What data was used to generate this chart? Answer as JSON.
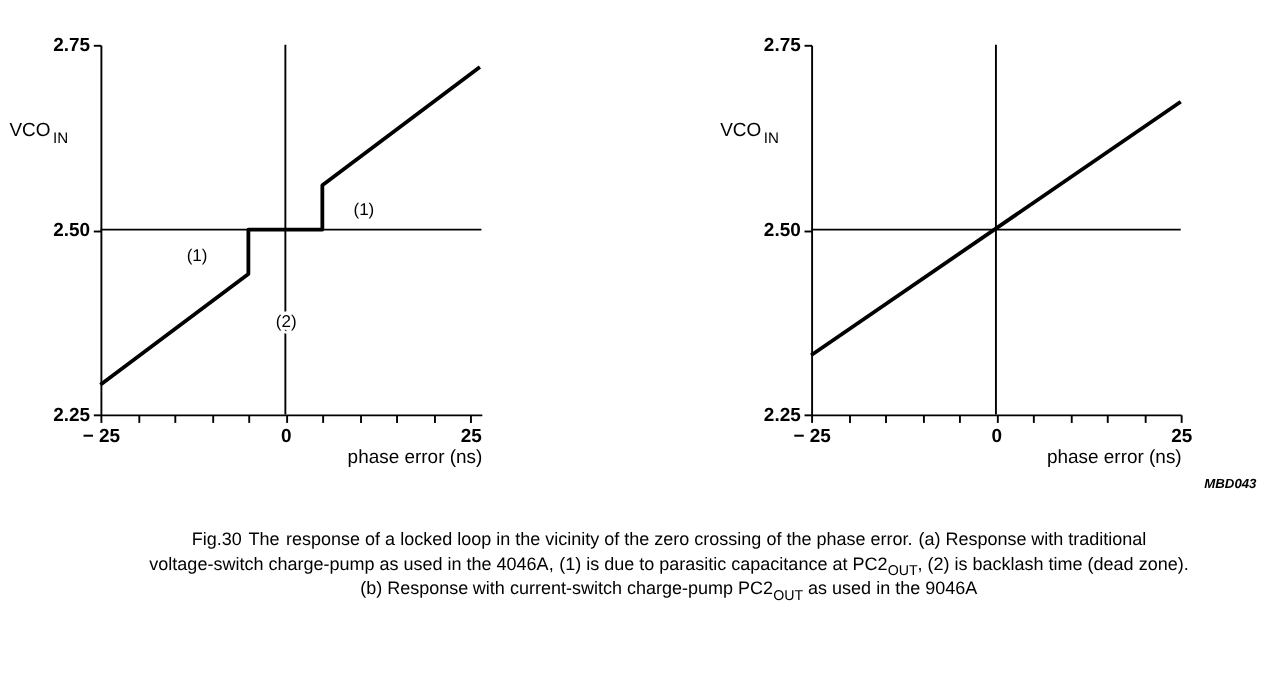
{
  "chart_data": [
    {
      "type": "line",
      "ylabel": "VCO$_{IN}$",
      "xlabel": "phase error (ns)",
      "x": [
        -25,
        -5,
        -5,
        5,
        5,
        26.3
      ],
      "series": [
        {
          "color": "#000000",
          "values": [
            2.29,
            2.44,
            2.5,
            2.5,
            2.56,
            2.72
          ]
        }
      ],
      "xlim": [
        -25,
        26.5
      ],
      "ylim": [
        2.25,
        2.75
      ],
      "xticks": [
        {
          "value": -25,
          "label": "− 25"
        },
        {
          "value": -20,
          "label": null
        },
        {
          "value": -15,
          "label": null
        },
        {
          "value": -10,
          "label": null
        },
        {
          "value": -5,
          "label": null
        },
        0,
        {
          "value": 5,
          "label": null
        },
        {
          "value": 10,
          "label": null
        },
        {
          "value": 15,
          "label": null
        },
        {
          "value": 20,
          "label": null
        },
        25
      ],
      "yticks": [
        {
          "value": 2.25,
          "label": "2.25"
        },
        {
          "value": 2.5,
          "label": "2.50"
        },
        {
          "value": 2.75,
          "label": "2.75"
        }
      ],
      "ref_lines": [
        {
          "axis": "y",
          "value": 2.5
        },
        {
          "axis": "x",
          "value": 0
        }
      ],
      "annotations": [
        "(1)",
        "(1)",
        "(2)",
        "Fig.30  The response of a locked loop in the vicinity of the zero crossing of the phase error. (a) Response with traditional voltage-switch charge-pump as used in the 4046A, (1) is due to parasitic capacitance at PC2$_{OUT}$, (2) is backlash time (dead zone). (b) Response with current-switch charge-pump PC2$_{OUT}$ as used in the 9046A",
        "MBD043"
      ],
      "grid": false
    },
    {
      "type": "line",
      "ylabel": "VCO$_{IN}$",
      "xlabel": "phase error (ns)",
      "x": [
        -25,
        25
      ],
      "series": [
        {
          "color": "#000000",
          "values": [
            2.33,
            2.673
          ]
        }
      ],
      "xlim": [
        -25,
        25
      ],
      "ylim": [
        2.25,
        2.75
      ],
      "xticks": [
        {
          "value": -25,
          "label": "− 25"
        },
        {
          "value": -20,
          "label": null
        },
        {
          "value": -15,
          "label": null
        },
        {
          "value": -10,
          "label": null
        },
        {
          "value": -5,
          "label": null
        },
        0,
        {
          "value": 5,
          "label": null
        },
        {
          "value": 10,
          "label": null
        },
        {
          "value": 15,
          "label": null
        },
        {
          "value": 20,
          "label": null
        },
        25
      ],
      "yticks": [
        {
          "value": 2.25,
          "label": "2.25"
        },
        {
          "value": 2.5,
          "label": "2.50"
        },
        {
          "value": 2.75,
          "label": "2.75"
        }
      ],
      "ref_lines": [
        {
          "axis": "y",
          "value": 2.5
        },
        {
          "axis": "x",
          "value": 0
        }
      ],
      "grid": false
    }
  ]
}
